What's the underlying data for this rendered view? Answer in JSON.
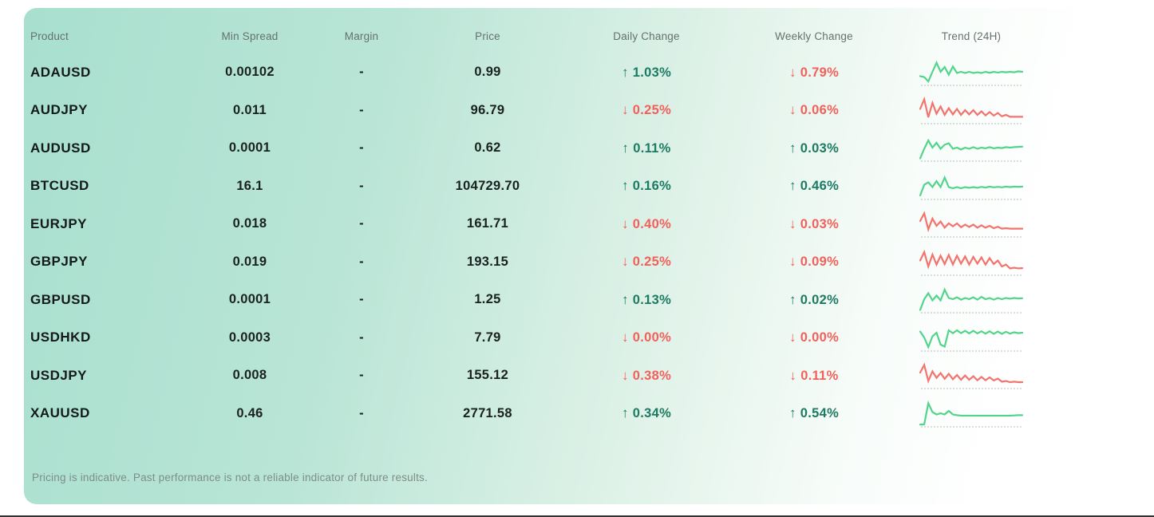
{
  "colors": {
    "card_mint": "#a8dfce",
    "up_text": "#1d7a62",
    "down_text": "#f2605a",
    "spark_green": "#52d58a",
    "spark_red": "#f3736d",
    "header_text": "#66716f"
  },
  "icons": {
    "up_arrow": "↑",
    "down_arrow": "↓"
  },
  "table": {
    "columns": [
      "Product",
      "Min Spread",
      "Margin",
      "Price",
      "Daily Change",
      "Weekly Change",
      "Trend (24H)"
    ],
    "rows": [
      {
        "product": "ADAUSD",
        "min_spread": "0.00102",
        "margin": "-",
        "price": "0.99",
        "daily_change": {
          "direction": "up",
          "value": "1.03%"
        },
        "weekly_change": {
          "direction": "down",
          "value": "0.79%"
        },
        "trend": {
          "color": "green",
          "points": [
            0.68,
            0.72,
            0.9,
            0.5,
            0.12,
            0.5,
            0.3,
            0.62,
            0.28,
            0.55,
            0.5,
            0.55,
            0.5,
            0.55,
            0.52,
            0.55,
            0.5,
            0.54,
            0.5,
            0.53,
            0.5,
            0.52,
            0.5,
            0.52,
            0.48,
            0.5
          ]
        }
      },
      {
        "product": "AUDJPY",
        "min_spread": "0.011",
        "margin": "-",
        "price": "96.79",
        "daily_change": {
          "direction": "down",
          "value": "0.25%"
        },
        "weekly_change": {
          "direction": "down",
          "value": "0.06%"
        },
        "trend": {
          "color": "red",
          "points": [
            0.45,
            0.05,
            0.8,
            0.2,
            0.65,
            0.35,
            0.7,
            0.42,
            0.68,
            0.45,
            0.7,
            0.5,
            0.68,
            0.5,
            0.7,
            0.55,
            0.72,
            0.58,
            0.73,
            0.62,
            0.76,
            0.7,
            0.78,
            0.78,
            0.78,
            0.78
          ]
        }
      },
      {
        "product": "AUDUSD",
        "min_spread": "0.0001",
        "margin": "-",
        "price": "0.62",
        "daily_change": {
          "direction": "up",
          "value": "0.11%"
        },
        "weekly_change": {
          "direction": "up",
          "value": "0.03%"
        },
        "trend": {
          "color": "green",
          "points": [
            0.95,
            0.55,
            0.2,
            0.5,
            0.3,
            0.55,
            0.38,
            0.32,
            0.55,
            0.5,
            0.58,
            0.5,
            0.55,
            0.48,
            0.55,
            0.5,
            0.53,
            0.48,
            0.53,
            0.5,
            0.52,
            0.48,
            0.5,
            0.48,
            0.47,
            0.46
          ]
        }
      },
      {
        "product": "BTCUSD",
        "min_spread": "16.1",
        "margin": "-",
        "price": "104729.70",
        "daily_change": {
          "direction": "up",
          "value": "0.16%"
        },
        "weekly_change": {
          "direction": "up",
          "value": "0.46%"
        },
        "trend": {
          "color": "green",
          "points": [
            0.9,
            0.45,
            0.35,
            0.55,
            0.3,
            0.55,
            0.15,
            0.55,
            0.6,
            0.55,
            0.6,
            0.55,
            0.58,
            0.55,
            0.58,
            0.54,
            0.57,
            0.53,
            0.56,
            0.54,
            0.56,
            0.53,
            0.55,
            0.53,
            0.54,
            0.53
          ]
        }
      },
      {
        "product": "EURJPY",
        "min_spread": "0.018",
        "margin": "-",
        "price": "161.71",
        "daily_change": {
          "direction": "down",
          "value": "0.40%"
        },
        "weekly_change": {
          "direction": "down",
          "value": "0.03%"
        },
        "trend": {
          "color": "red",
          "points": [
            0.4,
            0.08,
            0.75,
            0.3,
            0.6,
            0.42,
            0.68,
            0.5,
            0.62,
            0.5,
            0.66,
            0.55,
            0.65,
            0.55,
            0.68,
            0.58,
            0.68,
            0.6,
            0.7,
            0.64,
            0.72,
            0.7,
            0.72,
            0.72,
            0.72,
            0.72
          ]
        }
      },
      {
        "product": "GBPJPY",
        "min_spread": "0.019",
        "margin": "-",
        "price": "193.15",
        "daily_change": {
          "direction": "down",
          "value": "0.25%"
        },
        "weekly_change": {
          "direction": "down",
          "value": "0.09%"
        },
        "trend": {
          "color": "red",
          "points": [
            0.45,
            0.1,
            0.7,
            0.2,
            0.62,
            0.25,
            0.6,
            0.22,
            0.62,
            0.25,
            0.58,
            0.28,
            0.62,
            0.3,
            0.58,
            0.32,
            0.62,
            0.35,
            0.6,
            0.45,
            0.7,
            0.62,
            0.78,
            0.75,
            0.78,
            0.77
          ]
        }
      },
      {
        "product": "GBPUSD",
        "min_spread": "0.0001",
        "margin": "-",
        "price": "1.25",
        "daily_change": {
          "direction": "up",
          "value": "0.13%"
        },
        "weekly_change": {
          "direction": "up",
          "value": "0.02%"
        },
        "trend": {
          "color": "green",
          "points": [
            0.95,
            0.5,
            0.25,
            0.55,
            0.35,
            0.55,
            0.1,
            0.45,
            0.5,
            0.42,
            0.52,
            0.45,
            0.5,
            0.42,
            0.52,
            0.4,
            0.5,
            0.45,
            0.52,
            0.45,
            0.5,
            0.45,
            0.48,
            0.45,
            0.47,
            0.46
          ]
        }
      },
      {
        "product": "USDHKD",
        "min_spread": "0.0003",
        "margin": "-",
        "price": "7.79",
        "daily_change": {
          "direction": "down",
          "value": "0.00%"
        },
        "weekly_change": {
          "direction": "down",
          "value": "0.00%"
        },
        "trend": {
          "color": "green",
          "points": [
            0.25,
            0.5,
            0.9,
            0.45,
            0.3,
            0.8,
            0.88,
            0.2,
            0.32,
            0.2,
            0.32,
            0.22,
            0.33,
            0.22,
            0.33,
            0.24,
            0.34,
            0.24,
            0.35,
            0.25,
            0.35,
            0.26,
            0.34,
            0.28,
            0.32,
            0.3
          ]
        }
      },
      {
        "product": "USDJPY",
        "min_spread": "0.008",
        "margin": "-",
        "price": "155.12",
        "daily_change": {
          "direction": "down",
          "value": "0.38%"
        },
        "weekly_change": {
          "direction": "down",
          "value": "0.11%"
        },
        "trend": {
          "color": "red",
          "points": [
            0.4,
            0.08,
            0.75,
            0.35,
            0.62,
            0.42,
            0.66,
            0.45,
            0.68,
            0.5,
            0.7,
            0.52,
            0.7,
            0.55,
            0.72,
            0.58,
            0.72,
            0.6,
            0.73,
            0.65,
            0.78,
            0.75,
            0.8,
            0.78,
            0.8,
            0.8
          ]
        }
      },
      {
        "product": "XAUUSD",
        "min_spread": "0.46",
        "margin": "-",
        "price": "2771.58",
        "daily_change": {
          "direction": "up",
          "value": "0.34%"
        },
        "weekly_change": {
          "direction": "up",
          "value": "0.54%"
        },
        "trend": {
          "color": "green",
          "points": [
            0.97,
            0.96,
            0.08,
            0.45,
            0.55,
            0.5,
            0.55,
            0.4,
            0.55,
            0.58,
            0.6,
            0.6,
            0.6,
            0.6,
            0.6,
            0.6,
            0.6,
            0.6,
            0.6,
            0.6,
            0.6,
            0.6,
            0.6,
            0.59,
            0.58,
            0.58
          ]
        }
      }
    ]
  },
  "footer": {
    "disclaimer": "Pricing is indicative. Past performance is not a reliable indicator of future results."
  }
}
